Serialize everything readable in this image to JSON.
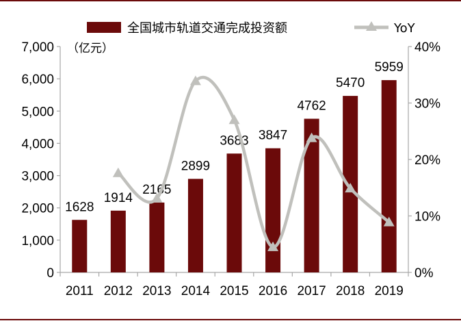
{
  "chart_data": {
    "type": "bar+line",
    "categories": [
      "2011",
      "2012",
      "2013",
      "2014",
      "2015",
      "2016",
      "2017",
      "2018",
      "2019"
    ],
    "series": [
      {
        "name": "全国城市轨道交通完成投资额",
        "type": "bar",
        "axis": "left",
        "color": "#6b0a0a",
        "values": [
          1628,
          1914,
          2165,
          2899,
          3683,
          3847,
          4762,
          5470,
          5959
        ]
      },
      {
        "name": "YoY",
        "type": "line",
        "axis": "right",
        "color": "#c0c0bc",
        "values": [
          null,
          17.6,
          13.1,
          33.9,
          27.0,
          4.5,
          23.8,
          14.9,
          8.9
        ]
      }
    ],
    "y_left": {
      "unit": "（亿元）",
      "ylim": [
        0,
        7000
      ],
      "ticks": [
        "0",
        "1,000",
        "2,000",
        "3,000",
        "4,000",
        "5,000",
        "6,000",
        "7,000"
      ]
    },
    "y_right": {
      "ylim": [
        0,
        40
      ],
      "ticks": [
        "0%",
        "10%",
        "20%",
        "30%",
        "40%"
      ]
    },
    "legend": "top",
    "grid": false
  }
}
